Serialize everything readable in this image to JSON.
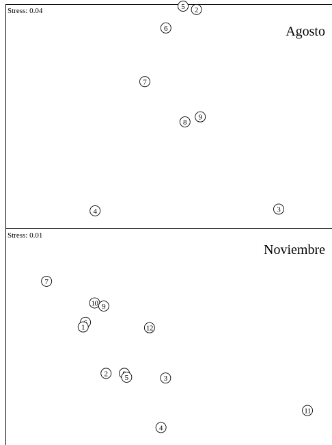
{
  "chart_data": [
    {
      "type": "scatter",
      "title": "Agosto",
      "stress_label": "Stress: 0.04",
      "points": [
        {
          "label": "5",
          "x": 0.25,
          "y": -0.8
        },
        {
          "label": "2",
          "x": 0.32,
          "y": -0.78
        },
        {
          "label": "6",
          "x": 0.16,
          "y": -0.67
        },
        {
          "label": "7",
          "x": 0.05,
          "y": -0.35
        },
        {
          "label": "9",
          "x": 0.34,
          "y": -0.14
        },
        {
          "label": "8",
          "x": 0.26,
          "y": -0.11
        },
        {
          "label": "4",
          "x": -0.21,
          "y": 0.42
        },
        {
          "label": "3",
          "x": 0.75,
          "y": 0.41
        }
      ]
    },
    {
      "type": "scatter",
      "title": "Noviembre",
      "stress_label": "Stress: 0.01",
      "points": [
        {
          "label": "7",
          "x": -0.31,
          "y": -0.7
        },
        {
          "label": "10",
          "x": -0.1,
          "y": -0.42
        },
        {
          "label": "9",
          "x": -0.06,
          "y": -0.38
        },
        {
          "label": "6",
          "x": -0.14,
          "y": -0.17
        },
        {
          "label": "1",
          "x": -0.15,
          "y": -0.11
        },
        {
          "label": "12",
          "x": 0.14,
          "y": -0.1
        },
        {
          "label": "2",
          "x": -0.05,
          "y": 0.49
        },
        {
          "label": "8",
          "x": 0.03,
          "y": 0.49
        },
        {
          "label": "5",
          "x": 0.04,
          "y": 0.54
        },
        {
          "label": "3",
          "x": 0.21,
          "y": 0.55
        },
        {
          "label": "11",
          "x": 0.83,
          "y": 0.97
        },
        {
          "label": "4",
          "x": 0.19,
          "y": 1.19
        }
      ]
    }
  ]
}
